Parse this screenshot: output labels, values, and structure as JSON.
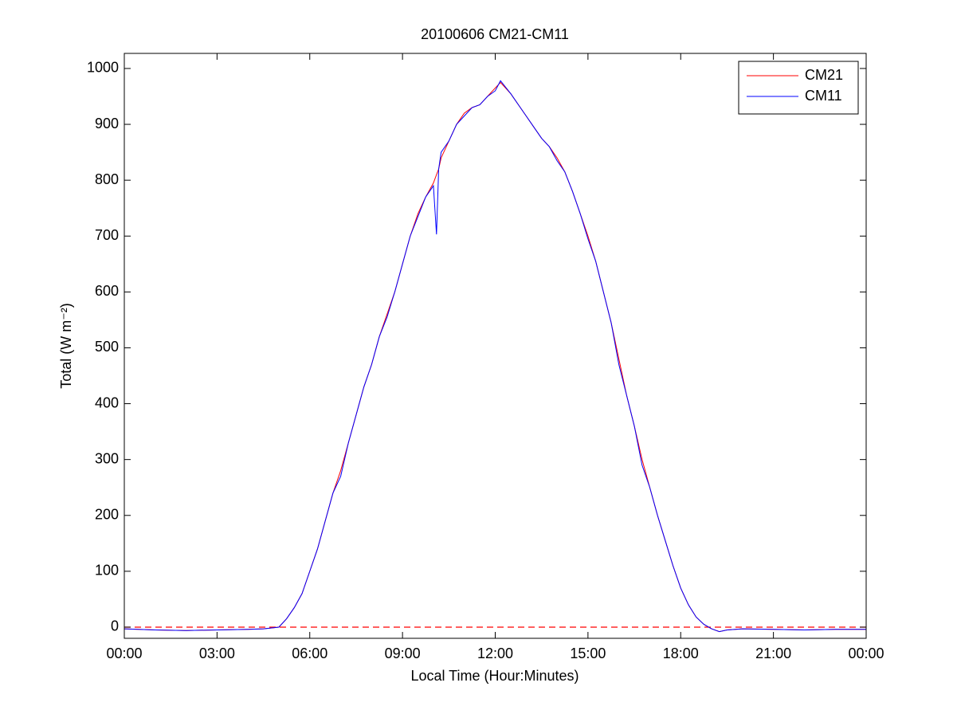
{
  "chart_data": {
    "type": "line",
    "title": "20100606 CM21-CM11",
    "xlabel": "Local Time (Hour:Minutes)",
    "ylabel": "Total (W m⁻²)",
    "x": [
      0,
      1,
      2,
      3,
      4,
      4.5,
      5,
      5.25,
      5.5,
      5.75,
      6,
      6.25,
      6.5,
      6.75,
      7,
      7.25,
      7.5,
      7.75,
      8,
      8.25,
      8.5,
      8.75,
      9,
      9.25,
      9.5,
      9.75,
      10,
      10.1,
      10.17,
      10.25,
      10.5,
      10.75,
      11,
      11.25,
      11.5,
      11.75,
      12,
      12.17,
      12.5,
      12.75,
      13,
      13.25,
      13.5,
      13.75,
      14,
      14.25,
      14.5,
      14.75,
      15,
      15.25,
      15.5,
      15.75,
      16,
      16.25,
      16.5,
      16.75,
      17,
      17.25,
      17.5,
      17.75,
      18,
      18.25,
      18.5,
      18.75,
      19,
      19.25,
      19.5,
      20,
      21,
      22,
      23,
      24
    ],
    "series": [
      {
        "name": "CM21",
        "color": "#ff0000",
        "values": [
          -3,
          -5,
          -6,
          -5,
          -4,
          -3,
          0,
          15,
          35,
          60,
          100,
          140,
          190,
          240,
          280,
          330,
          380,
          430,
          470,
          520,
          560,
          600,
          650,
          700,
          740,
          770,
          795,
          810,
          820,
          840,
          870,
          900,
          920,
          930,
          935,
          950,
          965,
          975,
          955,
          935,
          915,
          895,
          875,
          860,
          840,
          815,
          780,
          740,
          700,
          655,
          600,
          545,
          480,
          415,
          360,
          300,
          250,
          200,
          155,
          110,
          70,
          40,
          18,
          5,
          -3,
          -8,
          -5,
          -3,
          -4,
          -5,
          -4,
          -4
        ]
      },
      {
        "name": "CM11",
        "color": "#0000ff",
        "values": [
          -3,
          -5,
          -6,
          -5,
          -4,
          -3,
          0,
          15,
          35,
          60,
          100,
          140,
          190,
          240,
          270,
          330,
          380,
          430,
          470,
          520,
          555,
          600,
          650,
          700,
          735,
          770,
          790,
          703,
          820,
          850,
          870,
          900,
          915,
          930,
          935,
          950,
          960,
          978,
          955,
          935,
          915,
          895,
          875,
          860,
          835,
          815,
          780,
          740,
          695,
          655,
          600,
          545,
          470,
          415,
          360,
          290,
          250,
          200,
          155,
          110,
          70,
          40,
          18,
          5,
          -3,
          -8,
          -5,
          -3,
          -4,
          -5,
          -4,
          -4
        ]
      }
    ],
    "reference_line": {
      "y": 0,
      "color": "#ff0000",
      "style": "dashed"
    },
    "xlim": [
      0,
      24
    ],
    "xticks": [
      {
        "value": 0,
        "label": "00:00"
      },
      {
        "value": 3,
        "label": "03:00"
      },
      {
        "value": 6,
        "label": "06:00"
      },
      {
        "value": 9,
        "label": "09:00"
      },
      {
        "value": 12,
        "label": "12:00"
      },
      {
        "value": 15,
        "label": "15:00"
      },
      {
        "value": 18,
        "label": "18:00"
      },
      {
        "value": 21,
        "label": "21:00"
      },
      {
        "value": 24,
        "label": "00:00"
      }
    ],
    "ylim": [
      -20,
      1027
    ],
    "yticks": [
      0,
      100,
      200,
      300,
      400,
      500,
      600,
      700,
      800,
      900,
      1000
    ],
    "grid": false,
    "legend": "northeast"
  }
}
